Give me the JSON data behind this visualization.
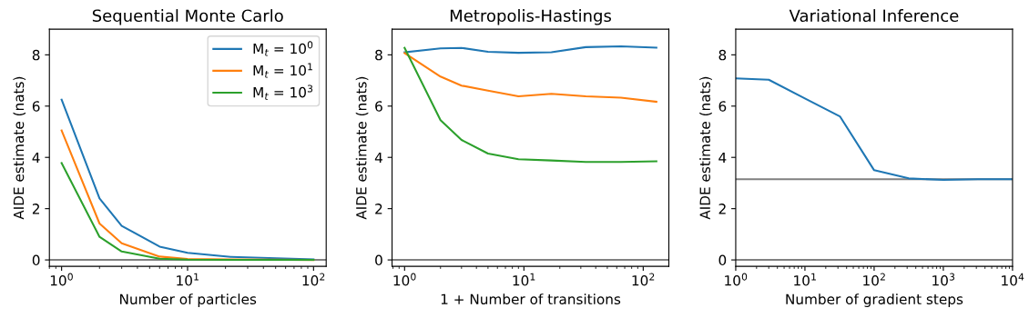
{
  "chart_data": [
    {
      "type": "line",
      "title": "Sequential Monte Carlo",
      "xlabel": "Number of particles",
      "ylabel": "AIDE estimate (nats)",
      "log": "x",
      "x": [
        1,
        2,
        3,
        6,
        10,
        22,
        100
      ],
      "xlim": [
        0.8,
        126
      ],
      "xticks": [
        {
          "value": 1,
          "label": "10$^{0}$"
        },
        {
          "value": 10,
          "label": "10$^{1}$"
        },
        {
          "value": 100,
          "label": "10$^{2}$"
        }
      ],
      "ylim": [
        -0.25,
        9
      ],
      "yticks": [
        0,
        2,
        4,
        6,
        8
      ],
      "grid": false,
      "legend": "top right",
      "series": [
        {
          "name": "M$_{t}$ = 10$^{0}$",
          "color": "#1f77b4",
          "values": [
            6.25,
            2.4,
            1.33,
            0.52,
            0.28,
            0.12,
            0.02
          ]
        },
        {
          "name": "M$_{t}$ = 10$^{1}$",
          "color": "#ff7f0e",
          "values": [
            5.05,
            1.42,
            0.65,
            0.13,
            0.04,
            0.02,
            0.0
          ]
        },
        {
          "name": "M$_{t}$ = 10$^{3}$",
          "color": "#2ca02c",
          "values": [
            3.78,
            0.9,
            0.33,
            0.05,
            0.01,
            0.0,
            0.0
          ]
        }
      ],
      "ref_lines": [
        {
          "axis": "y",
          "value": 0,
          "color": "#808080"
        }
      ]
    },
    {
      "type": "line",
      "title": "Metropolis-Hastings",
      "xlabel": "1 + Number of transitions",
      "ylabel": "AIDE estimate (nats)",
      "log": "x",
      "x": [
        1,
        2,
        3,
        5,
        9,
        17,
        33,
        65,
        129
      ],
      "xlim": [
        0.785,
        164
      ],
      "xticks": [
        {
          "value": 1,
          "label": "10$^{0}$"
        },
        {
          "value": 10,
          "label": "10$^{1}$"
        },
        {
          "value": 100,
          "label": "10$^{2}$"
        }
      ],
      "ylim": [
        -0.25,
        9
      ],
      "yticks": [
        0,
        2,
        4,
        6,
        8
      ],
      "grid": false,
      "series": [
        {
          "color": "#1f77b4",
          "values": [
            8.1,
            8.25,
            8.27,
            8.12,
            8.08,
            8.1,
            8.3,
            8.33,
            8.28
          ]
        },
        {
          "color": "#ff7f0e",
          "values": [
            8.07,
            7.15,
            6.8,
            6.6,
            6.38,
            6.48,
            6.38,
            6.33,
            6.17
          ]
        },
        {
          "color": "#2ca02c",
          "values": [
            8.27,
            5.45,
            4.68,
            4.15,
            3.93,
            3.88,
            3.82,
            3.82,
            3.85
          ]
        }
      ],
      "ref_lines": [
        {
          "axis": "y",
          "value": 0,
          "color": "#808080"
        }
      ]
    },
    {
      "type": "line",
      "title": "Variational Inference",
      "xlabel": "Number of gradient steps",
      "ylabel": "AIDE estimate (nats)",
      "log": "x",
      "x": [
        1,
        3,
        10,
        32,
        100,
        316,
        1000,
        3162,
        10000
      ],
      "xlim": [
        1,
        10000
      ],
      "xticks": [
        {
          "value": 1,
          "label": "10$^{0}$"
        },
        {
          "value": 10,
          "label": "10$^{1}$"
        },
        {
          "value": 100,
          "label": "10$^{2}$"
        },
        {
          "value": 1000,
          "label": "10$^{3}$"
        },
        {
          "value": 10000,
          "label": "10$^{4}$"
        }
      ],
      "ylim": [
        -0.25,
        9
      ],
      "yticks": [
        0,
        2,
        4,
        6,
        8
      ],
      "grid": false,
      "series": [
        {
          "color": "#1f77b4",
          "values": [
            7.08,
            7.03,
            6.3,
            5.6,
            3.5,
            3.18,
            3.12,
            3.15,
            3.15
          ]
        }
      ],
      "ref_lines": [
        {
          "axis": "y",
          "value": 0,
          "color": "#808080"
        },
        {
          "axis": "y",
          "value": 3.15,
          "color": "#808080"
        }
      ]
    }
  ]
}
